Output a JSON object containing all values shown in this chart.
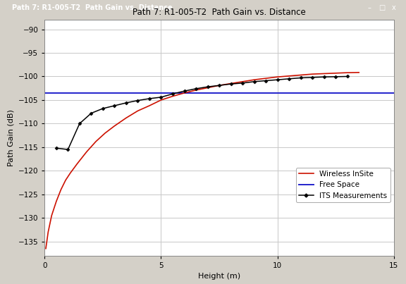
{
  "title": "Path 7: R1-005-T2  Path Gain vs. Distance",
  "xlabel": "Height (m)",
  "ylabel": "Path Gain (dB)",
  "xlim": [
    0,
    15
  ],
  "ylim": [
    -138,
    -88
  ],
  "yticks": [
    -90,
    -95,
    -100,
    -105,
    -110,
    -115,
    -120,
    -125,
    -130,
    -135
  ],
  "xticks": [
    0,
    5,
    10,
    15
  ],
  "free_space_y": -103.5,
  "wireless_insite_x": [
    0.05,
    0.15,
    0.3,
    0.5,
    0.7,
    0.9,
    1.1,
    1.4,
    1.8,
    2.2,
    2.6,
    3.0,
    3.5,
    4.0,
    4.5,
    5.0,
    5.5,
    6.0,
    6.5,
    7.0,
    7.5,
    8.0,
    8.5,
    9.0,
    9.5,
    10.0,
    10.5,
    11.0,
    11.5,
    12.0,
    12.5,
    13.0,
    13.5
  ],
  "wireless_insite_y": [
    -136.5,
    -133.0,
    -129.5,
    -126.5,
    -124.0,
    -122.0,
    -120.5,
    -118.5,
    -116.0,
    -113.8,
    -112.0,
    -110.5,
    -108.8,
    -107.3,
    -106.2,
    -105.0,
    -104.2,
    -103.5,
    -102.9,
    -102.4,
    -101.9,
    -101.5,
    -101.1,
    -100.7,
    -100.4,
    -100.1,
    -99.9,
    -99.7,
    -99.5,
    -99.4,
    -99.3,
    -99.2,
    -99.15
  ],
  "its_x": [
    0.5,
    1.0,
    1.5,
    2.0,
    2.5,
    3.0,
    3.5,
    4.0,
    4.5,
    5.0,
    5.5,
    6.0,
    6.5,
    7.0,
    7.5,
    8.0,
    8.5,
    9.0,
    9.5,
    10.0,
    10.5,
    11.0,
    11.5,
    12.0,
    12.5,
    13.0
  ],
  "its_y": [
    -115.2,
    -115.5,
    -110.0,
    -107.8,
    -106.8,
    -106.2,
    -105.6,
    -105.1,
    -104.7,
    -104.4,
    -103.7,
    -103.1,
    -102.6,
    -102.2,
    -101.9,
    -101.6,
    -101.4,
    -101.1,
    -100.9,
    -100.7,
    -100.5,
    -100.3,
    -100.2,
    -100.1,
    -100.05,
    -100.0
  ],
  "outer_bg_color": "#d4d0c8",
  "titlebar_color": "#0a246a",
  "titlebar_text_color": "#ffffff",
  "plot_bg_color": "#ffffff",
  "grid_color": "#c8c8c8",
  "wireless_insite_color": "#cc1100",
  "free_space_color": "#2222cc",
  "its_color": "#000000",
  "legend_fontsize": 7.5,
  "title_fontsize": 8.5,
  "axis_fontsize": 8,
  "tick_fontsize": 7.5
}
